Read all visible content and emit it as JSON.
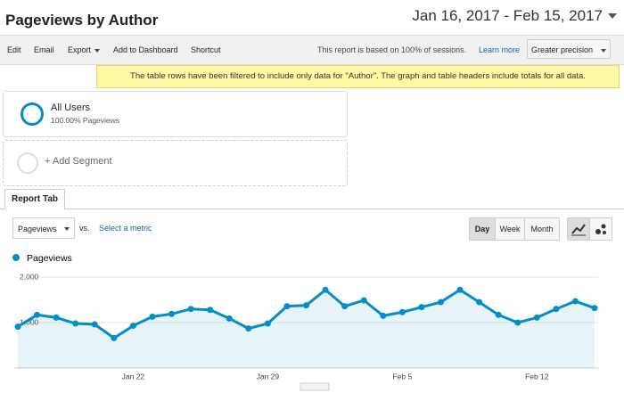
{
  "header": {
    "title": "Pageviews by Author",
    "date_range": "Jan 16, 2017 - Feb 15, 2017"
  },
  "toolbar": {
    "actions": [
      "Edit",
      "Email",
      "Export",
      "Add to Dashboard",
      "Shortcut"
    ],
    "sampling_note": "This report is based on 100% of sessions.",
    "learn_more": "Learn more",
    "precision": "Greater precision"
  },
  "banner": "The table rows have been filtered to include only data for \"Author\". The graph and table headers include totals for all data.",
  "segments": {
    "name": "All Users",
    "detail": "100.00% Pageviews",
    "add": "+ Add Segment"
  },
  "tab": "Report Tab",
  "controls": {
    "metric": "Pageviews",
    "vs": "vs.",
    "select_metric": "Select a metric",
    "intervals": [
      "Day",
      "Week",
      "Month"
    ]
  },
  "chart_data": {
    "type": "line",
    "categories": [
      null,
      null,
      null,
      null,
      null,
      null,
      "Jan 22",
      null,
      null,
      null,
      null,
      null,
      null,
      "Jan 29",
      null,
      null,
      null,
      null,
      null,
      null,
      "Feb 5",
      null,
      null,
      null,
      null,
      null,
      null,
      "Feb 12",
      null,
      null,
      null
    ],
    "series": [
      {
        "name": "Pageviews",
        "color": "#058dc7",
        "values": [
          910,
          1170,
          1110,
          980,
          960,
          660,
          930,
          1130,
          1190,
          1300,
          1280,
          1090,
          870,
          980,
          1360,
          1380,
          1720,
          1360,
          1490,
          1150,
          1230,
          1340,
          1450,
          1720,
          1450,
          1170,
          1000,
          1110,
          1300,
          1470,
          1320
        ]
      }
    ],
    "ylim": [
      0,
      2000
    ],
    "yticks": [
      {
        "value": 1000,
        "label": "1,000"
      },
      {
        "value": 2000,
        "label": "2,000"
      }
    ],
    "grid": true,
    "area": true
  }
}
